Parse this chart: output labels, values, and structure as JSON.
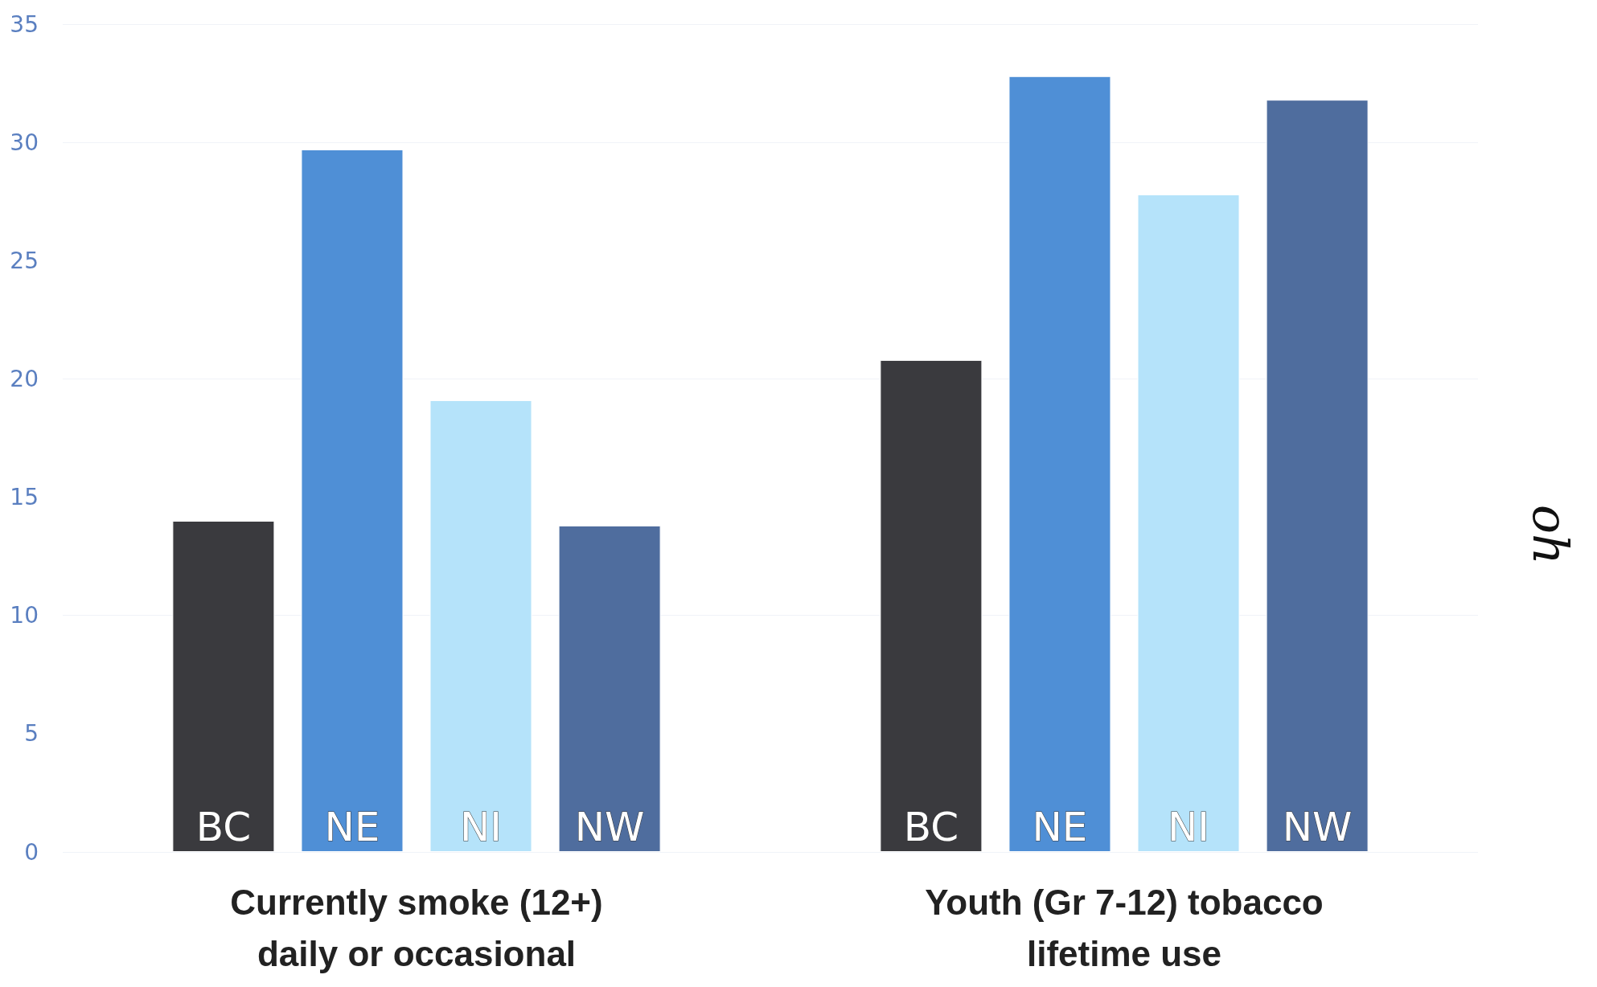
{
  "chart_data": {
    "type": "bar",
    "categories": [
      "Currently smoke (12+)\ndaily or occasional",
      "Youth (Gr 7-12) tobacco\nlifetime use"
    ],
    "series": [
      {
        "name": "BC",
        "color": "#3a3a3e",
        "values": [
          14,
          20.8
        ]
      },
      {
        "name": "NE",
        "color": "#4f8fd6",
        "values": [
          29.7,
          32.8
        ]
      },
      {
        "name": "NI",
        "color": "#b5e3fa",
        "values": [
          19.1,
          27.8
        ]
      },
      {
        "name": "NW",
        "color": "#4f6d9e",
        "values": [
          13.8,
          31.8
        ]
      }
    ],
    "ylim": [
      0,
      35
    ],
    "yticks": [
      0,
      5,
      10,
      15,
      20,
      25,
      30,
      35
    ],
    "grid": "y",
    "legend": false,
    "annotations": [
      "oh"
    ]
  }
}
